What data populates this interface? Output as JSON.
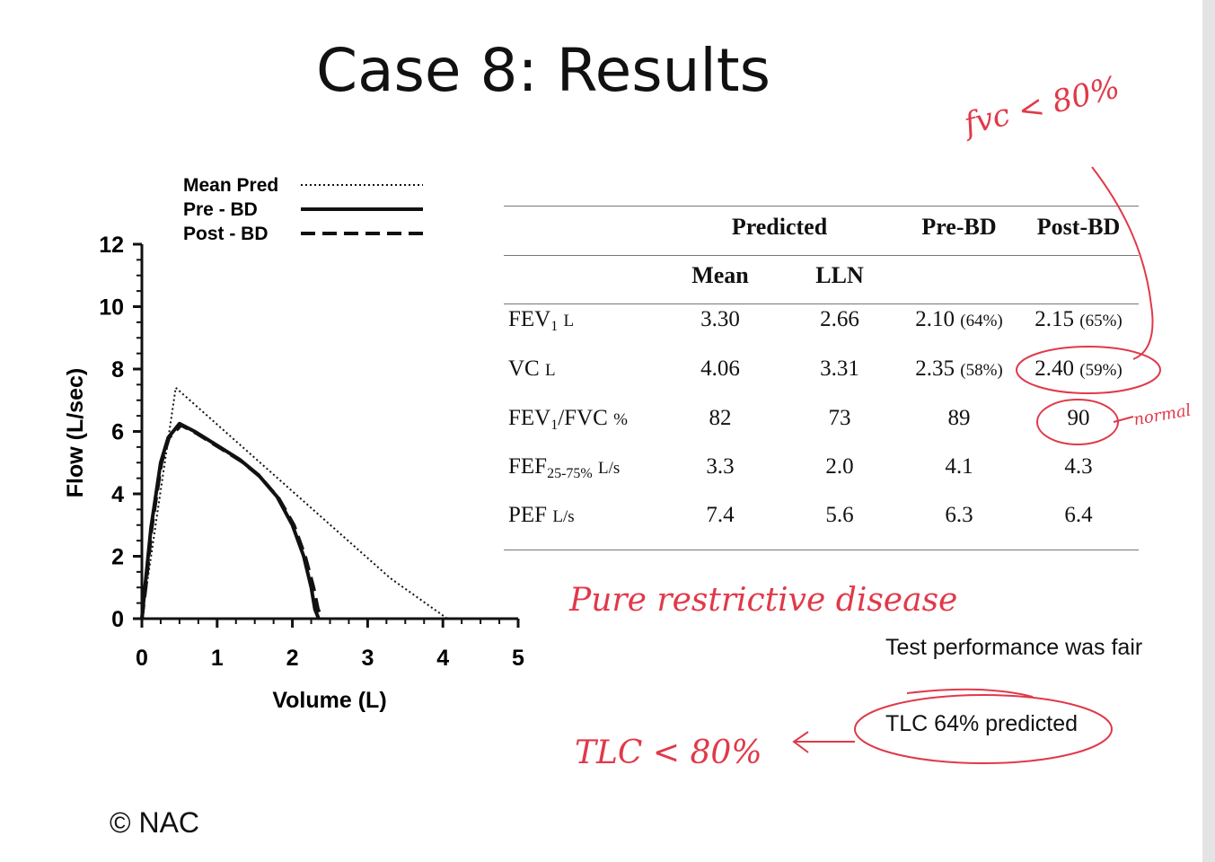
{
  "title": "Case 8: Results",
  "copyright": "© NAC",
  "chart_data": {
    "type": "line",
    "xlabel": "Volume (L)",
    "ylabel": "Flow (L/sec)",
    "xlim": [
      0,
      5
    ],
    "ylim": [
      0,
      12
    ],
    "x_ticks": [
      "0",
      "1",
      "2",
      "3",
      "4",
      "5"
    ],
    "y_ticks": [
      "0",
      "2",
      "4",
      "6",
      "8",
      "10",
      "12"
    ],
    "legend_placement": "top-left",
    "series": [
      {
        "name": "Mean Pred",
        "style": "dotted",
        "points": [
          [
            0,
            0
          ],
          [
            0.45,
            7.4
          ],
          [
            3.3,
            1.3
          ],
          [
            4.06,
            0
          ]
        ]
      },
      {
        "name": "Pre - BD",
        "style": "solid",
        "points": [
          [
            0,
            0
          ],
          [
            0.04,
            1.0
          ],
          [
            0.12,
            2.9
          ],
          [
            0.25,
            5.0
          ],
          [
            0.35,
            5.8
          ],
          [
            0.5,
            6.25
          ],
          [
            0.7,
            6.0
          ],
          [
            1.0,
            5.55
          ],
          [
            1.3,
            5.1
          ],
          [
            1.55,
            4.6
          ],
          [
            1.8,
            3.9
          ],
          [
            2.0,
            3.0
          ],
          [
            2.15,
            2.0
          ],
          [
            2.25,
            1.0
          ],
          [
            2.3,
            0.3
          ],
          [
            2.35,
            0
          ]
        ]
      },
      {
        "name": "Post - BD",
        "style": "dashed",
        "points": [
          [
            0,
            0
          ],
          [
            0.05,
            1.0
          ],
          [
            0.13,
            2.9
          ],
          [
            0.26,
            5.0
          ],
          [
            0.36,
            5.8
          ],
          [
            0.52,
            6.2
          ],
          [
            0.72,
            5.95
          ],
          [
            1.02,
            5.5
          ],
          [
            1.32,
            5.05
          ],
          [
            1.57,
            4.55
          ],
          [
            1.82,
            3.85
          ],
          [
            2.02,
            3.0
          ],
          [
            2.17,
            2.0
          ],
          [
            2.28,
            1.0
          ],
          [
            2.34,
            0.3
          ],
          [
            2.4,
            0
          ]
        ]
      }
    ]
  },
  "table": {
    "headers": {
      "predicted": "Predicted",
      "pre_bd": "Pre-BD",
      "post_bd": "Post-BD",
      "mean": "Mean",
      "lln": "LLN"
    },
    "rows": [
      {
        "label": "FEV",
        "sub": "1",
        "unit": "L",
        "mean": "3.30",
        "lln": "2.66",
        "pre": "2.10",
        "pre_pct": "(64%)",
        "post": "2.15",
        "post_pct": "(65%)"
      },
      {
        "label": "VC",
        "unit": "L",
        "mean": "4.06",
        "lln": "3.31",
        "pre": "2.35",
        "pre_pct": "(58%)",
        "post": "2.40",
        "post_pct": "(59%)"
      },
      {
        "label": "FEV",
        "sub": "1",
        "label2": "/FVC",
        "unit": "%",
        "mean": "82",
        "lln": "73",
        "pre": "89",
        "post": "90"
      },
      {
        "label": "FEF",
        "sub": "25-75%",
        "unit": "L/s",
        "mean": "3.3",
        "lln": "2.0",
        "pre": "4.1",
        "post": "4.3"
      },
      {
        "label": "PEF",
        "unit": "L/s",
        "mean": "7.4",
        "lln": "5.6",
        "pre": "6.3",
        "post": "6.4"
      }
    ]
  },
  "notes": {
    "test_performance": "Test performance was fair",
    "tlc": "TLC 64% predicted"
  },
  "handwriting": {
    "fvc_note": "fvc < 80%",
    "normal_note": "normal",
    "disease_note": "Pure restrictive disease",
    "tlc_note": "TLC < 80%"
  },
  "colors": {
    "ink": "#111111",
    "annotation": "#e0394a"
  }
}
